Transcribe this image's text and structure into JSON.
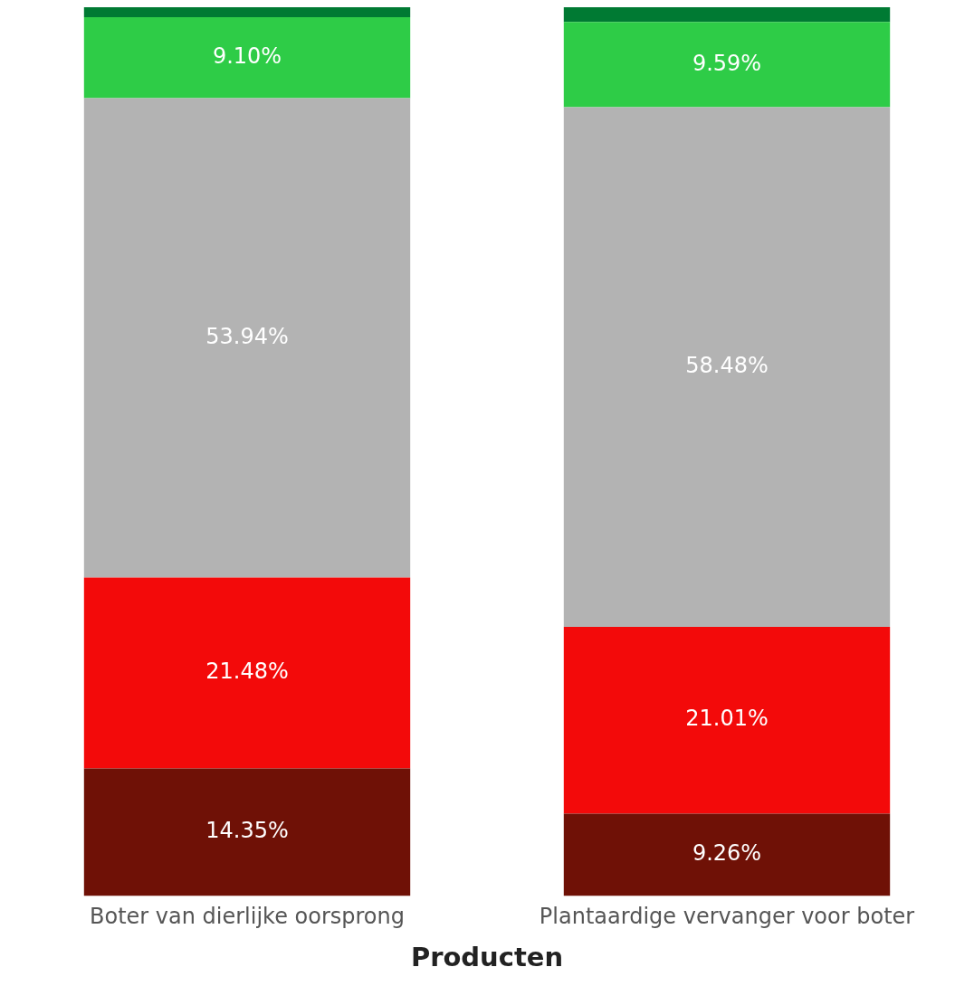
{
  "chart_data": {
    "type": "bar",
    "stacked": true,
    "xlabel": "Producten",
    "categories": [
      "Boter van dierlijke oorsprong",
      "Plantaardige vervanger voor boter"
    ],
    "series": [
      {
        "color": "#6f1106",
        "values": [
          14.35,
          9.26
        ],
        "value_labels": [
          "14.35%",
          "9.26%"
        ]
      },
      {
        "color": "#f30a0a",
        "values": [
          21.48,
          21.01
        ],
        "value_labels": [
          "21.48%",
          "21.01%"
        ]
      },
      {
        "color": "#b3b3b3",
        "values": [
          53.94,
          58.48
        ],
        "value_labels": [
          "53.94%",
          "58.48%"
        ]
      },
      {
        "color": "#2ecc47",
        "values": [
          9.1,
          9.59
        ],
        "value_labels": [
          "9.10%",
          "9.59%"
        ]
      },
      {
        "color": "#007a33",
        "values": [
          1.13,
          1.66
        ],
        "value_labels": [
          null,
          null
        ]
      }
    ],
    "ylim": [
      0,
      100
    ],
    "grid": false,
    "legend": false,
    "tick_labels": "x"
  }
}
